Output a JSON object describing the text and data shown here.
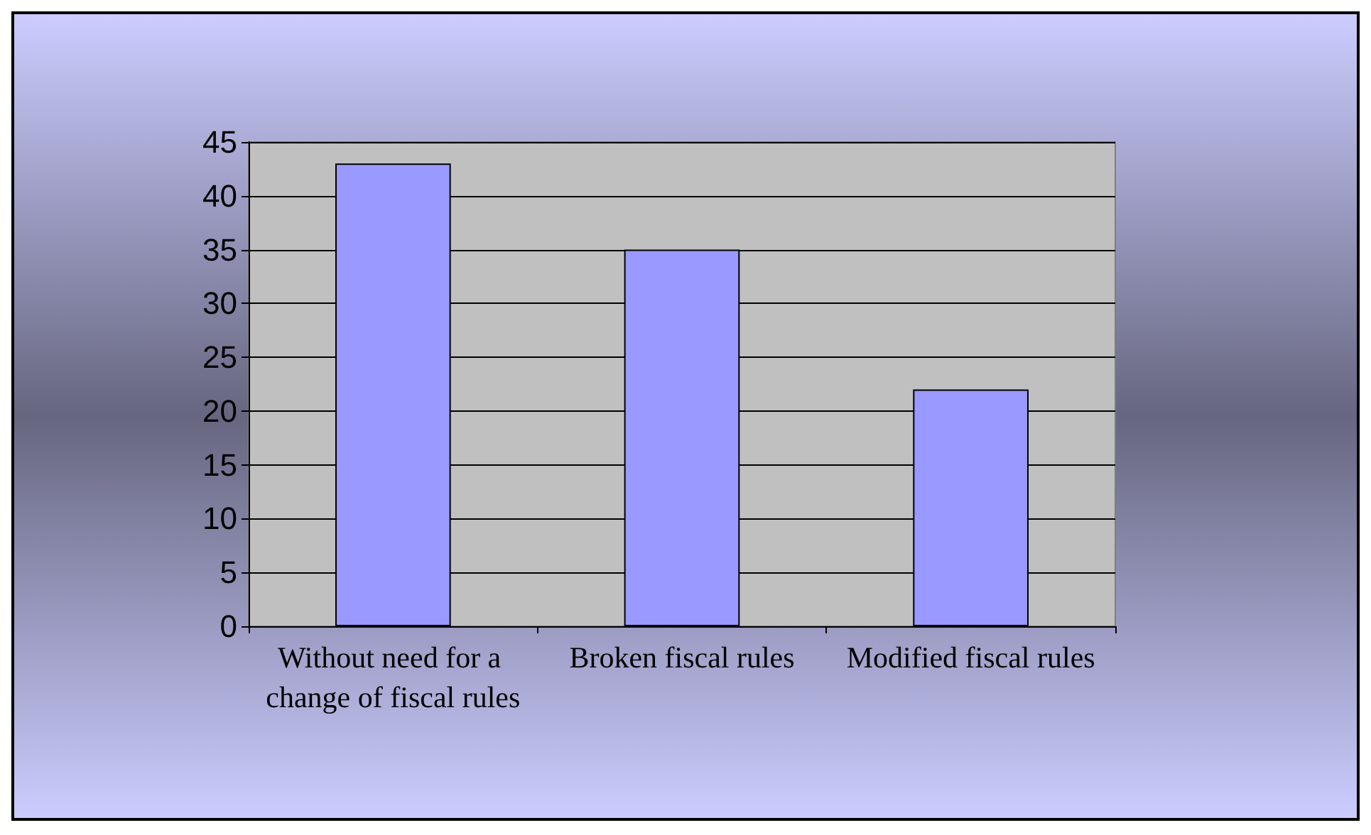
{
  "chart_data": {
    "type": "bar",
    "categories": [
      "Without need for a change of fiscal rules",
      "Broken fiscal rules",
      "Modified fiscal rules"
    ],
    "values": [
      43,
      35,
      22
    ],
    "color": "#9999ff",
    "ylim": [
      0,
      45
    ],
    "yticks": [
      0,
      5,
      10,
      15,
      20,
      25,
      30,
      35,
      40,
      45
    ],
    "grid": "y"
  }
}
